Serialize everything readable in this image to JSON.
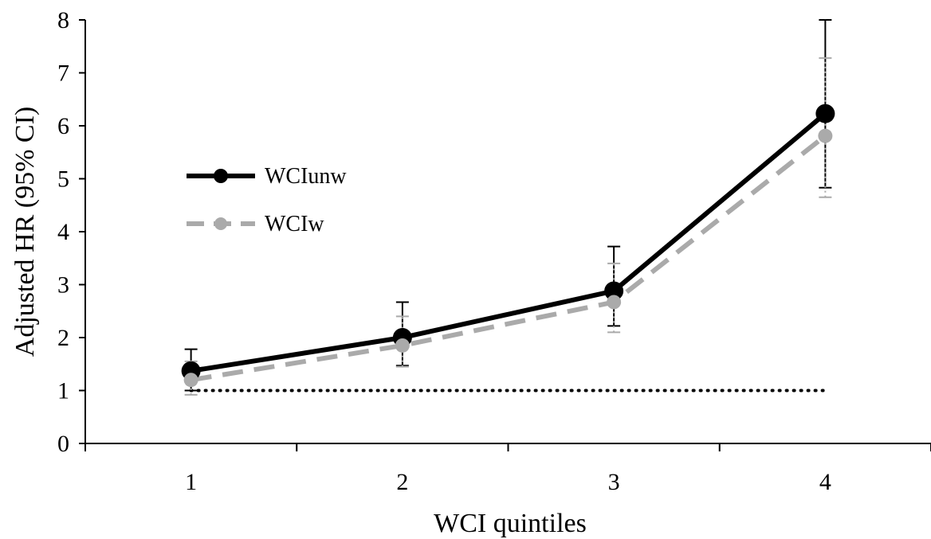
{
  "chart_data": {
    "type": "line",
    "title": "",
    "xlabel": "WCI quintiles",
    "ylabel": "Adjusted HR (95% CI)",
    "categories": [
      "1",
      "2",
      "3",
      "4"
    ],
    "x": [
      1,
      2,
      3,
      4
    ],
    "xlim": [
      0.5,
      4.5
    ],
    "ylim": [
      0,
      8
    ],
    "yticks": [
      "0",
      "1",
      "2",
      "3",
      "4",
      "5",
      "6",
      "7",
      "8"
    ],
    "grid": false,
    "legend_position": "left",
    "reference_line": {
      "y": 1,
      "style": "dotted",
      "color": "#000000"
    },
    "series": [
      {
        "name": "WCIunw",
        "values": [
          1.37,
          2.0,
          2.88,
          6.23
        ],
        "ci_lower": [
          1.0,
          1.47,
          2.22,
          4.83
        ],
        "ci_upper": [
          1.78,
          2.67,
          3.72,
          8.0
        ],
        "color": "#000000",
        "style": "solid"
      },
      {
        "name": "WCIw",
        "values": [
          1.2,
          1.85,
          2.67,
          5.81
        ],
        "ci_lower": [
          0.92,
          1.45,
          2.1,
          4.65
        ],
        "ci_upper": [
          1.55,
          2.4,
          3.4,
          7.28
        ],
        "color": "#aaaaaa",
        "style": "dashed"
      }
    ]
  }
}
